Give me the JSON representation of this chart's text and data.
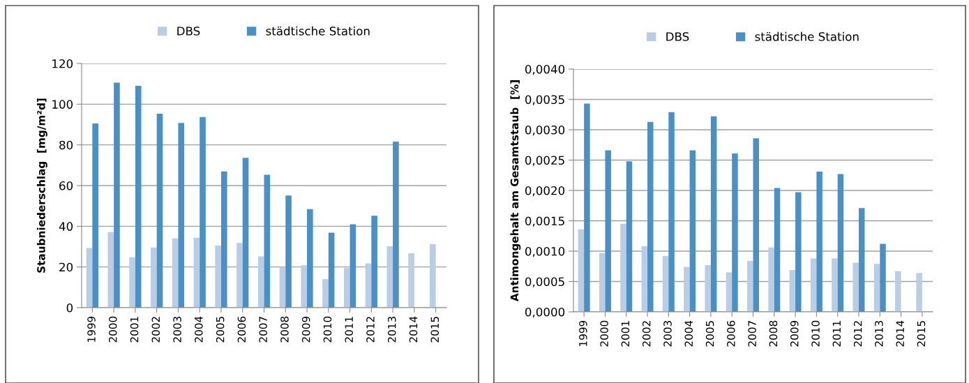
{
  "chart_data": [
    {
      "type": "bar",
      "ylabel": "Staubniederschlag  [mg/m²d]",
      "categories": [
        "1999",
        "2000",
        "2001",
        "2002",
        "2003",
        "2004",
        "2005",
        "2006",
        "2007",
        "2008",
        "2009",
        "2010",
        "2011",
        "2012",
        "2013",
        "2014",
        "2015"
      ],
      "series": [
        {
          "name": "DBS",
          "color": "#b9cde5",
          "values": [
            29.3,
            37.2,
            24.8,
            29.6,
            34.0,
            34.4,
            30.5,
            31.8,
            25.2,
            20.0,
            20.8,
            14.0,
            19.5,
            21.7,
            30.2,
            26.7,
            31.2
          ]
        },
        {
          "name": "städtische Station",
          "color": "#4a90c4",
          "values": [
            90.5,
            110.6,
            109.0,
            95.3,
            90.8,
            93.7,
            66.9,
            73.6,
            65.3,
            55.1,
            48.4,
            36.9,
            41.0,
            45.2,
            81.6,
            null,
            null
          ]
        }
      ],
      "ylim": [
        0,
        120
      ],
      "yticks": [
        0,
        20,
        40,
        60,
        80,
        100,
        120
      ],
      "grid": "y",
      "legend": "top"
    },
    {
      "type": "bar",
      "ylabel": "Antimongehalt am Gesamtstaub  [%]",
      "categories": [
        "1999",
        "2000",
        "2001",
        "2002",
        "2003",
        "2004",
        "2005",
        "2006",
        "2007",
        "2008",
        "2009",
        "2010",
        "2011",
        "2012",
        "2013",
        "2014",
        "2015"
      ],
      "series": [
        {
          "name": "DBS",
          "color": "#b9cde5",
          "values": [
            0.00136,
            0.00097,
            0.00145,
            0.00108,
            0.00092,
            0.00074,
            0.00077,
            0.00065,
            0.00084,
            0.00106,
            0.00069,
            0.00088,
            0.00088,
            0.00081,
            0.00079,
            0.00067,
            0.00064
          ]
        },
        {
          "name": "städtische Station",
          "color": "#4a90c4",
          "values": [
            0.00343,
            0.00266,
            0.00248,
            0.00313,
            0.00329,
            0.00266,
            0.00322,
            0.00261,
            0.00286,
            0.00204,
            0.00197,
            0.00231,
            0.00227,
            0.00171,
            0.00112,
            null,
            null
          ]
        }
      ],
      "ylim": [
        0,
        0.004
      ],
      "yticks": [
        {
          "value": 0,
          "label": "0,0000"
        },
        {
          "value": 0.0005,
          "label": "0,0005"
        },
        {
          "value": 0.001,
          "label": "0,0010"
        },
        {
          "value": 0.0015,
          "label": "0,0015"
        },
        {
          "value": 0.002,
          "label": "0,0020"
        },
        {
          "value": 0.0025,
          "label": "0,0025"
        },
        {
          "value": 0.003,
          "label": "0,0030"
        },
        {
          "value": 0.0035,
          "label": "0,0035"
        },
        {
          "value": 0.004,
          "label": "0,0040"
        }
      ],
      "grid": "y",
      "legend": "top"
    }
  ]
}
